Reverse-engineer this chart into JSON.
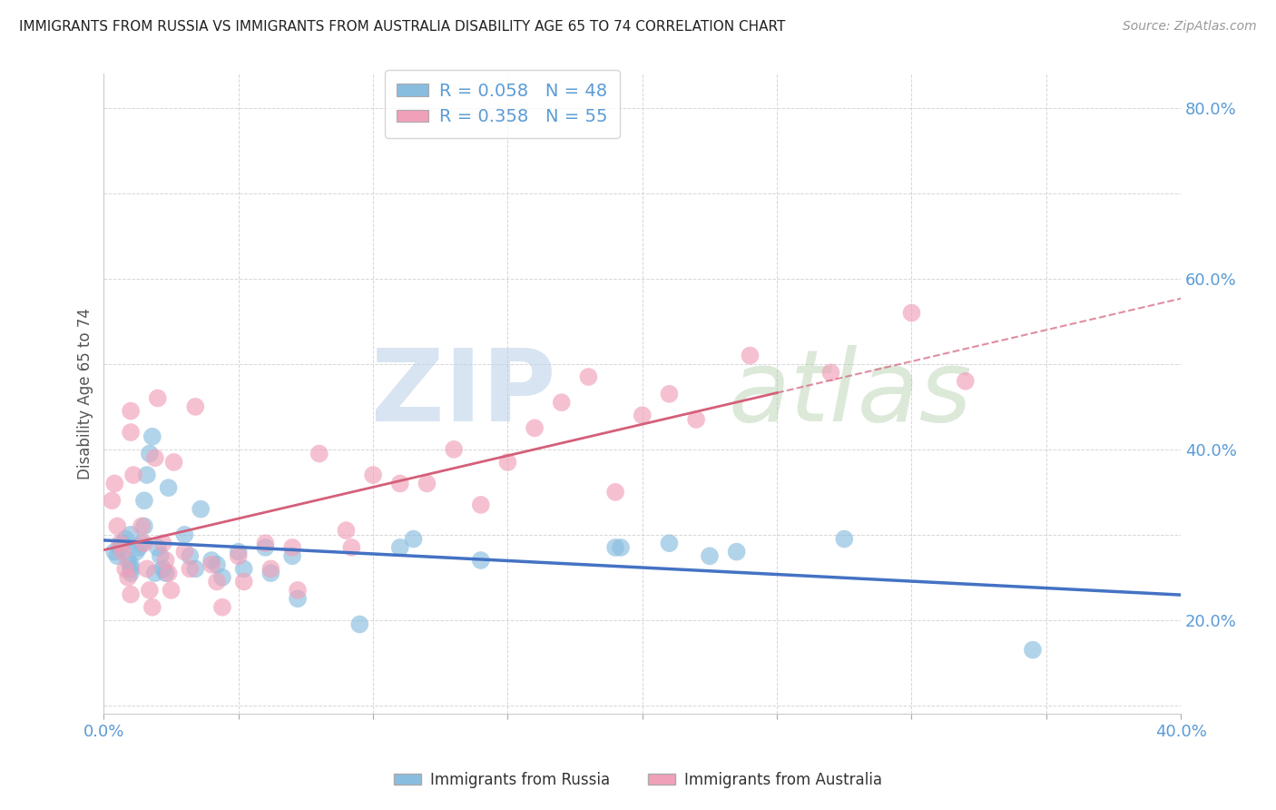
{
  "title": "IMMIGRANTS FROM RUSSIA VS IMMIGRANTS FROM AUSTRALIA DISABILITY AGE 65 TO 74 CORRELATION CHART",
  "source": "Source: ZipAtlas.com",
  "ylabel": "Disability Age 65 to 74",
  "xlim": [
    0.0,
    0.4
  ],
  "ylim": [
    0.09,
    0.84
  ],
  "russia_color": "#89bde0",
  "australia_color": "#f0a0b8",
  "russia_line_color": "#4472c4",
  "australia_line_color": "#d45f7a",
  "russia_R": 0.058,
  "russia_N": 48,
  "australia_R": 0.358,
  "australia_N": 55,
  "russia_label": "Immigrants from Russia",
  "australia_label": "Immigrants from Australia",
  "background_color": "#ffffff",
  "grid_color": "#cccccc",
  "title_color": "#222222",
  "axis_label_color": "#5b9bd5",
  "ylabel_color": "#555555",
  "russia_scatter_x": [
    0.004,
    0.005,
    0.006,
    0.007,
    0.008,
    0.009,
    0.01,
    0.01,
    0.01,
    0.01,
    0.012,
    0.013,
    0.014,
    0.015,
    0.015,
    0.016,
    0.017,
    0.018,
    0.019,
    0.02,
    0.021,
    0.022,
    0.023,
    0.024,
    0.03,
    0.032,
    0.034,
    0.036,
    0.04,
    0.042,
    0.044,
    0.05,
    0.052,
    0.06,
    0.062,
    0.07,
    0.072,
    0.095,
    0.11,
    0.115,
    0.14,
    0.19,
    0.192,
    0.21,
    0.225,
    0.235,
    0.275,
    0.345
  ],
  "russia_scatter_y": [
    0.28,
    0.275,
    0.285,
    0.29,
    0.295,
    0.27,
    0.265,
    0.26,
    0.255,
    0.3,
    0.28,
    0.285,
    0.29,
    0.31,
    0.34,
    0.37,
    0.395,
    0.415,
    0.255,
    0.285,
    0.275,
    0.26,
    0.255,
    0.355,
    0.3,
    0.275,
    0.26,
    0.33,
    0.27,
    0.265,
    0.25,
    0.28,
    0.26,
    0.285,
    0.255,
    0.275,
    0.225,
    0.195,
    0.285,
    0.295,
    0.27,
    0.285,
    0.285,
    0.29,
    0.275,
    0.28,
    0.295,
    0.165
  ],
  "australia_scatter_x": [
    0.003,
    0.004,
    0.005,
    0.006,
    0.007,
    0.008,
    0.009,
    0.01,
    0.01,
    0.01,
    0.011,
    0.014,
    0.015,
    0.016,
    0.017,
    0.018,
    0.019,
    0.02,
    0.022,
    0.023,
    0.024,
    0.025,
    0.026,
    0.03,
    0.032,
    0.034,
    0.04,
    0.042,
    0.044,
    0.05,
    0.052,
    0.06,
    0.062,
    0.07,
    0.072,
    0.08,
    0.09,
    0.092,
    0.1,
    0.11,
    0.12,
    0.13,
    0.14,
    0.15,
    0.16,
    0.17,
    0.18,
    0.19,
    0.2,
    0.21,
    0.22,
    0.24,
    0.27,
    0.3,
    0.32
  ],
  "australia_scatter_y": [
    0.34,
    0.36,
    0.31,
    0.29,
    0.28,
    0.26,
    0.25,
    0.23,
    0.42,
    0.445,
    0.37,
    0.31,
    0.29,
    0.26,
    0.235,
    0.215,
    0.39,
    0.46,
    0.29,
    0.27,
    0.255,
    0.235,
    0.385,
    0.28,
    0.26,
    0.45,
    0.265,
    0.245,
    0.215,
    0.275,
    0.245,
    0.29,
    0.26,
    0.285,
    0.235,
    0.395,
    0.305,
    0.285,
    0.37,
    0.36,
    0.36,
    0.4,
    0.335,
    0.385,
    0.425,
    0.455,
    0.485,
    0.35,
    0.44,
    0.465,
    0.435,
    0.51,
    0.49,
    0.56,
    0.48
  ]
}
